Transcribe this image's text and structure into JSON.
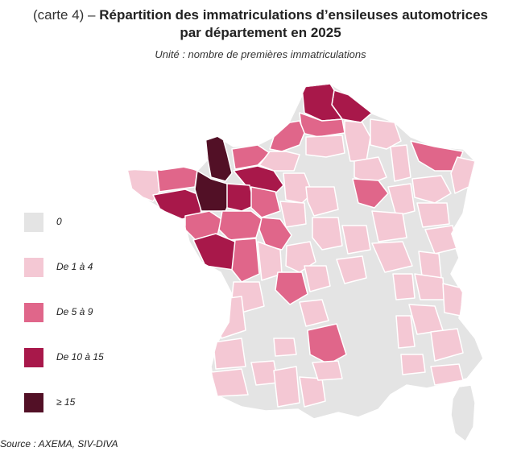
{
  "header": {
    "prefix": "(carte 4) –",
    "title_line1": "Répartition des immatriculations d’ensileuses automotrices",
    "title_line2": "par département en 2025",
    "subtitle": "Unité : nombre de premières immatriculations"
  },
  "legend": [
    {
      "label": "0",
      "color": "#e4e4e4"
    },
    {
      "label": "De 1 à 4",
      "color": "#f4c8d4"
    },
    {
      "label": "De 5 à 9",
      "color": "#e0668a"
    },
    {
      "label": "De 10 à 15",
      "color": "#a8184a"
    },
    {
      "label": "≥ 15",
      "color": "#521026"
    }
  ],
  "source": "Source : AXEMA, SIV-DIVA",
  "map": {
    "region_classes": {
      "nord-est-lille": 3,
      "nord-pas-de-calais": 3,
      "somme": 2,
      "seine-maritime": 2,
      "aisne": 1,
      "oise": 1,
      "manche": 4,
      "calvados": 2,
      "orne": 3,
      "eure": 1,
      "eure-et-loir": 1,
      "finistere": 1,
      "cotes-d-armor": 2,
      "morbihan": 3,
      "ille-et-vilaine": 4,
      "mayenne": 3,
      "sarthe": 2,
      "loire-atlantique": 2,
      "maine-et-loire": 2,
      "vendee": 3,
      "deux-sevres": 2,
      "vienne": 1,
      "indre-et-loire": 2,
      "loir-et-cher": 1,
      "loiret": 1,
      "cher": 1,
      "indre": 1,
      "haute-vienne": 2,
      "creuse": 1,
      "correze": 1,
      "charente": 1,
      "aveyron": 2,
      "marne": 1,
      "aube": 2,
      "ardennes": 1,
      "meuse": 1,
      "moselle": 2,
      "bas-rhin": 1,
      "vosges": 1,
      "haute-marne": 1,
      "haute-saone": 1,
      "doubs": 1,
      "jura": 1,
      "cote-d-or": 1,
      "nievre": 1,
      "saone-et-loire": 1,
      "allier": 1,
      "ain": 1,
      "rhone": 1,
      "isere": 1,
      "savoie": 1,
      "drome": 1,
      "hautes-alpes": 1,
      "gironde": 1,
      "landes": 1,
      "gers": 1,
      "tarn-et-garonne": 1,
      "haute-garonne": 1,
      "ariege": 1,
      "pyrenees-atl": 1,
      "aude": 1,
      "vaucluse": 1,
      "var": 1
    }
  }
}
